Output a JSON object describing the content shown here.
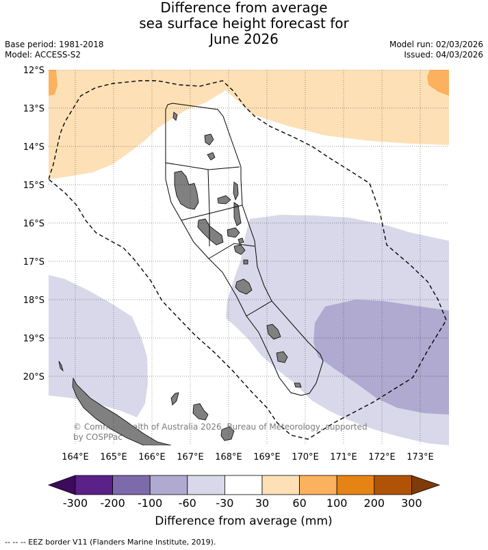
{
  "title": {
    "line1": "Difference from average",
    "line2": "sea surface height forecast for",
    "line3": "June 2026"
  },
  "meta": {
    "base_period": "Base period: 1981-2018",
    "model": "Model: ACCESS-S2",
    "model_run": "Model run: 02/03/2026",
    "issued": "Issued: 04/03/2026"
  },
  "map": {
    "lat_ticks": [
      "12°S",
      "13°S",
      "14°S",
      "15°S",
      "16°S",
      "17°S",
      "18°S",
      "19°S",
      "20°S"
    ],
    "lon_ticks": [
      "164°E",
      "165°E",
      "166°E",
      "167°E",
      "168°E",
      "169°E",
      "170°E",
      "171°E",
      "172°E",
      "173°E"
    ],
    "copyright_line1": "© Commonwealth of Australia 2026, Bureau of Meteorology, supported",
    "copyright_line2": "by COSPPac",
    "colors": {
      "pos_30_60": "#fde0b6",
      "pos_60_100": "#fbb15d",
      "neg_30_60": "#d8d8ea",
      "neg_60_100": "#b0a9d0",
      "land": "#808080"
    }
  },
  "colorbar": {
    "labels": [
      "-300",
      "-200",
      "-100",
      "-60",
      "-30",
      "30",
      "60",
      "100",
      "200",
      "300"
    ],
    "colors": [
      "#3e0b5c",
      "#5a2188",
      "#7d6aab",
      "#b0a9d0",
      "#d8d8ea",
      "#ffffff",
      "#fde0b6",
      "#fbb15d",
      "#e58314",
      "#b15306",
      "#7f3b08"
    ],
    "title": "Difference from average (mm)"
  },
  "footer": "--  --  -- EEZ border V11 (Flanders Marine Institute, 2019)."
}
